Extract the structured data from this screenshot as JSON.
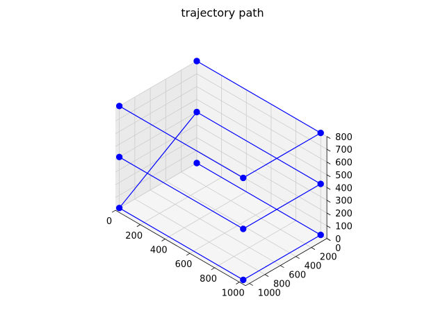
{
  "chart_data": {
    "type": "scatter",
    "subtype": "3d-line-with-markers",
    "title": "trajectory path",
    "xlabel": "",
    "ylabel": "",
    "zlabel": "",
    "xlim": [
      0,
      1050
    ],
    "ylim": [
      0,
      1050
    ],
    "zlim": [
      0,
      800
    ],
    "x_ticks": [
      "0",
      "200",
      "400",
      "600",
      "800",
      "1000"
    ],
    "y_ticks": [
      "0",
      "200",
      "400",
      "600",
      "800",
      "1000"
    ],
    "z_ticks": [
      "0",
      "100",
      "200",
      "300",
      "400",
      "500",
      "600",
      "700",
      "800"
    ],
    "grid": true,
    "legend": "none",
    "series": [
      {
        "x": [
          0,
          1000,
          1000,
          0,
          0,
          1000,
          1000,
          0
        ],
        "y": [
          0,
          0,
          1000,
          1000,
          0,
          0,
          1000,
          1000
        ],
        "z": [
          0,
          0,
          0,
          0,
          400,
          400,
          400,
          400
        ],
        "color": "#0000ff"
      },
      {
        "x": [
          0,
          1000,
          1000,
          0
        ],
        "y": [
          0,
          0,
          1000,
          1000
        ],
        "z": [
          800,
          800,
          800,
          800
        ],
        "color": "#0000ff"
      }
    ],
    "pane_colors": {
      "side": "#eaeaea",
      "back": "#f2f2f2",
      "floor": "#f5f5f5",
      "grid": "#cccccc"
    }
  }
}
